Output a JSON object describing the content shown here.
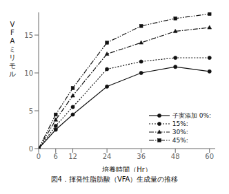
{
  "chart_data": {
    "type": "line",
    "title": "図4．揮発性脂肪酸（VFA）生成量の推移",
    "xlabel": "培養時間（Hr）",
    "ylabel": "VFAミリモル",
    "x": [
      0,
      6,
      12,
      24,
      36,
      48,
      60
    ],
    "series": [
      {
        "name": "子実添加 0%:",
        "color": "#111111",
        "marker": "circle",
        "line_style": "solid",
        "values": [
          0,
          2.5,
          4.5,
          8.2,
          10.0,
          10.8,
          10.2
        ]
      },
      {
        "name": "15%:",
        "color": "#111111",
        "marker": "circle",
        "line_style": "dotted",
        "values": [
          0,
          3.0,
          5.5,
          10.5,
          11.5,
          12.0,
          12.0
        ]
      },
      {
        "name": "30%:",
        "color": "#111111",
        "marker": "triangle",
        "line_style": "dashdot",
        "values": [
          0,
          3.8,
          7.0,
          12.5,
          14.0,
          15.5,
          16.0
        ]
      },
      {
        "name": "45%:",
        "color": "#111111",
        "marker": "square",
        "line_style": "dashdotdot",
        "values": [
          0,
          4.5,
          8.0,
          14.0,
          16.2,
          17.2,
          17.8
        ]
      }
    ],
    "xlim": [
      0,
      62
    ],
    "ylim": [
      0,
      18
    ],
    "xticks": [
      0,
      6,
      12,
      24,
      36,
      48,
      60
    ],
    "yticks": [
      0,
      5,
      10,
      15
    ],
    "grid": false,
    "legend": "lower right"
  }
}
